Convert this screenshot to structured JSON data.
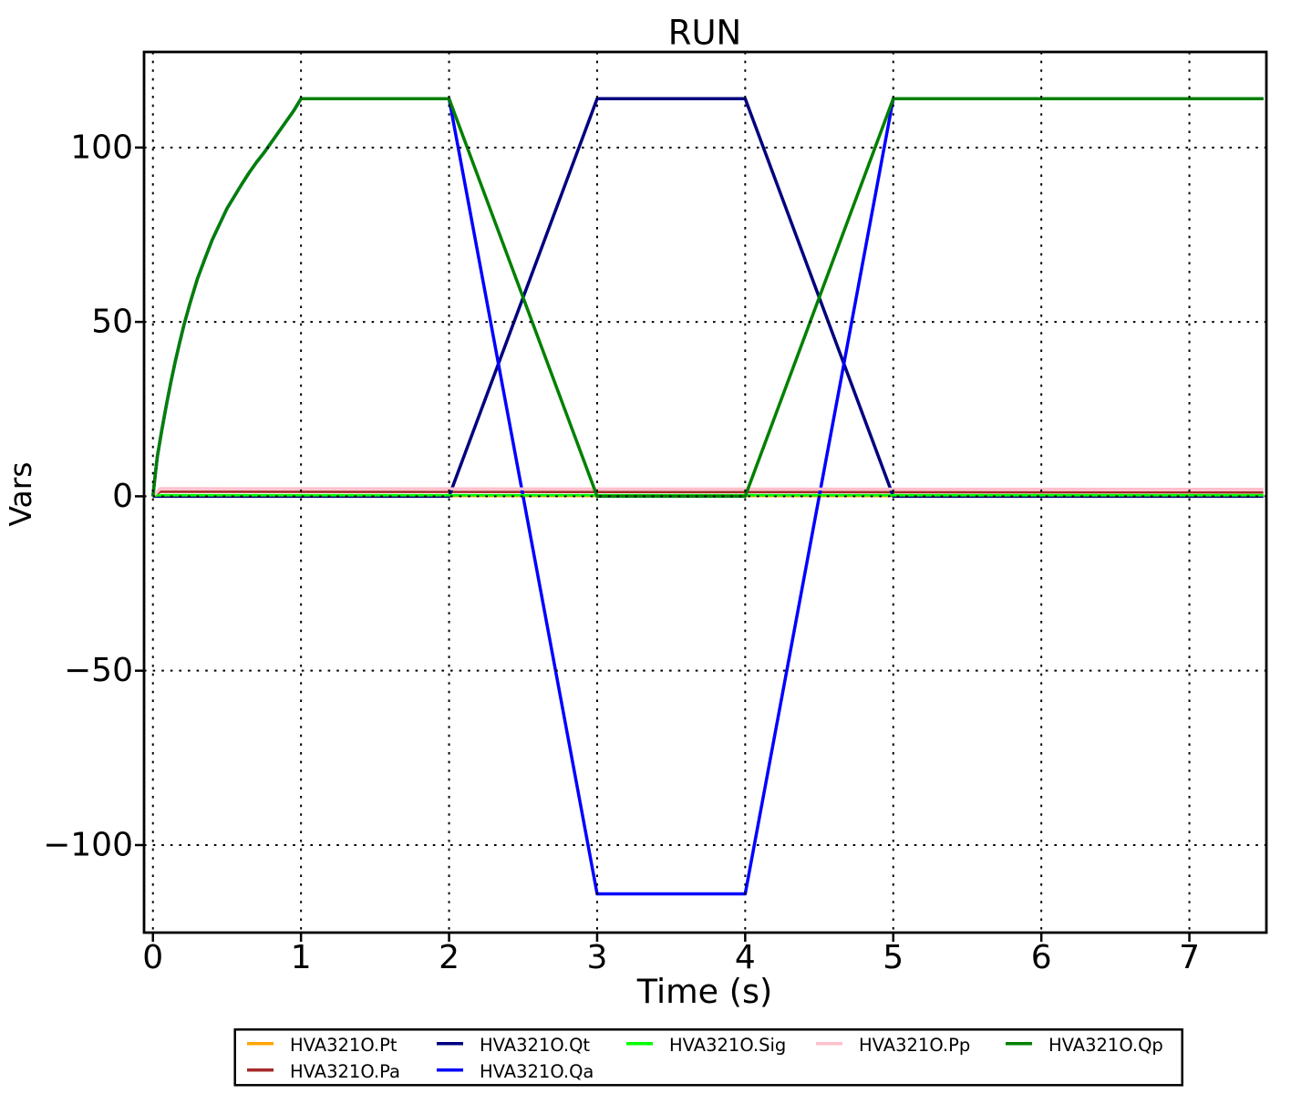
{
  "chart_data": {
    "type": "line",
    "title": "RUN",
    "xlabel": "Time (s)",
    "ylabel": "Vars",
    "xlim": [
      -0.06,
      7.52
    ],
    "ylim": [
      -125.1,
      127.4
    ],
    "grid": true,
    "grid_above_lines": true,
    "legend_position": "bottom",
    "xticks": [
      {
        "v": 0,
        "label": "0"
      },
      {
        "v": 1,
        "label": "1"
      },
      {
        "v": 2,
        "label": "2"
      },
      {
        "v": 3,
        "label": "3"
      },
      {
        "v": 4,
        "label": "4"
      },
      {
        "v": 5,
        "label": "5"
      },
      {
        "v": 6,
        "label": "6"
      },
      {
        "v": 7,
        "label": "7"
      }
    ],
    "yticks": [
      {
        "v": -100,
        "label": "−100"
      },
      {
        "v": -50,
        "label": "−50"
      },
      {
        "v": 0,
        "label": "0"
      },
      {
        "v": 50,
        "label": "50"
      },
      {
        "v": 100,
        "label": "100"
      }
    ],
    "series": [
      {
        "name": "HVA321O.Pt",
        "color": "#FFA500",
        "lw": 2.2,
        "points": [
          [
            0,
            0
          ],
          [
            7.5,
            0
          ]
        ]
      },
      {
        "name": "HVA321O.Pa",
        "color": "#A52A2A",
        "lw": 2.6,
        "points": [
          [
            0,
            0
          ],
          [
            0.05,
            1.3
          ],
          [
            2,
            1.25
          ],
          [
            4,
            1.2
          ],
          [
            7.5,
            1.1
          ]
        ]
      },
      {
        "name": "HVA321O.Qt",
        "color": "#000080",
        "lw": 3.5,
        "points": [
          [
            0,
            0
          ],
          [
            2,
            0
          ],
          [
            3,
            114
          ],
          [
            4,
            114
          ],
          [
            5,
            0
          ],
          [
            7.5,
            0
          ]
        ]
      },
      {
        "name": "HVA321O.Qa",
        "color": "#0000FF",
        "lw": 3.5,
        "points": [
          [
            0,
            0
          ],
          [
            0.015,
            6
          ],
          [
            0.03,
            11.5
          ],
          [
            0.06,
            19
          ],
          [
            0.09,
            26
          ],
          [
            0.12,
            32.5
          ],
          [
            0.15,
            38.5
          ],
          [
            0.18,
            44
          ],
          [
            0.21,
            49.2
          ],
          [
            0.25,
            55.3
          ],
          [
            0.3,
            62.3
          ],
          [
            0.35,
            68
          ],
          [
            0.4,
            73.5
          ],
          [
            0.45,
            78
          ],
          [
            0.5,
            82.5
          ],
          [
            0.55,
            86
          ],
          [
            0.6,
            89.5
          ],
          [
            0.65,
            92.8
          ],
          [
            0.7,
            95.8
          ],
          [
            0.75,
            98.5
          ],
          [
            0.8,
            101.5
          ],
          [
            0.85,
            104.5
          ],
          [
            0.9,
            107.5
          ],
          [
            0.95,
            110.5
          ],
          [
            1,
            114
          ],
          [
            2,
            114
          ],
          [
            3,
            -114
          ],
          [
            4,
            -114
          ],
          [
            5,
            114
          ],
          [
            7.5,
            114
          ]
        ]
      },
      {
        "name": "HVA321O.Sig",
        "color": "#00FF00",
        "lw": 2.8,
        "points": [
          [
            0,
            0
          ],
          [
            0.03,
            0.3
          ],
          [
            7.5,
            0.3
          ]
        ]
      },
      {
        "name": "HVA321O.Pp",
        "color": "#FFC0CB",
        "lw": 3.4,
        "points": [
          [
            0,
            0
          ],
          [
            0.05,
            2.2
          ],
          [
            7.5,
            2.0
          ]
        ]
      },
      {
        "name": "HVA321O.Qp",
        "color": "#008000",
        "lw": 3.5,
        "points": [
          [
            0,
            0
          ],
          [
            0.015,
            6
          ],
          [
            0.03,
            11.5
          ],
          [
            0.06,
            19
          ],
          [
            0.09,
            26
          ],
          [
            0.12,
            32.5
          ],
          [
            0.15,
            38.5
          ],
          [
            0.18,
            44
          ],
          [
            0.21,
            49.2
          ],
          [
            0.25,
            55.3
          ],
          [
            0.3,
            62.3
          ],
          [
            0.35,
            68
          ],
          [
            0.4,
            73.5
          ],
          [
            0.45,
            78
          ],
          [
            0.5,
            82.5
          ],
          [
            0.55,
            86
          ],
          [
            0.6,
            89.5
          ],
          [
            0.65,
            92.8
          ],
          [
            0.7,
            95.8
          ],
          [
            0.75,
            98.5
          ],
          [
            0.8,
            101.5
          ],
          [
            0.85,
            104.5
          ],
          [
            0.9,
            107.5
          ],
          [
            0.95,
            110.5
          ],
          [
            1,
            114
          ],
          [
            2,
            114
          ],
          [
            3,
            0
          ],
          [
            4,
            0
          ],
          [
            5,
            114
          ],
          [
            7.5,
            114
          ]
        ]
      }
    ],
    "legend_columns": [
      [
        "HVA321O.Pt",
        "HVA321O.Pa"
      ],
      [
        "HVA321O.Qt",
        "HVA321O.Qa"
      ],
      [
        "HVA321O.Sig"
      ],
      [
        "HVA321O.Pp"
      ],
      [
        "HVA321O.Qp"
      ]
    ]
  }
}
